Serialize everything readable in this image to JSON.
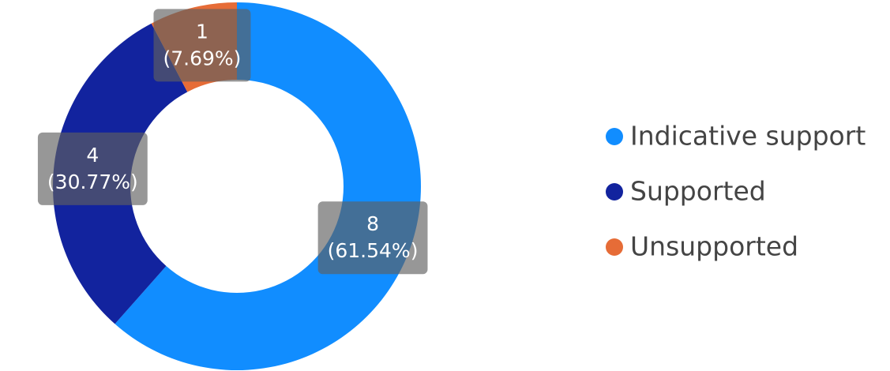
{
  "chart_data": {
    "type": "donut",
    "categories": [
      "Indicative support",
      "Supported",
      "Unsupported"
    ],
    "values": [
      8,
      4,
      1
    ],
    "percents": [
      61.54,
      30.77,
      7.69
    ],
    "percent_labels": [
      "(61.54%)",
      "(30.77%)",
      "(7.69%)"
    ],
    "colors": [
      "#118dff",
      "#12239e",
      "#e66c37"
    ],
    "legend": "right"
  }
}
